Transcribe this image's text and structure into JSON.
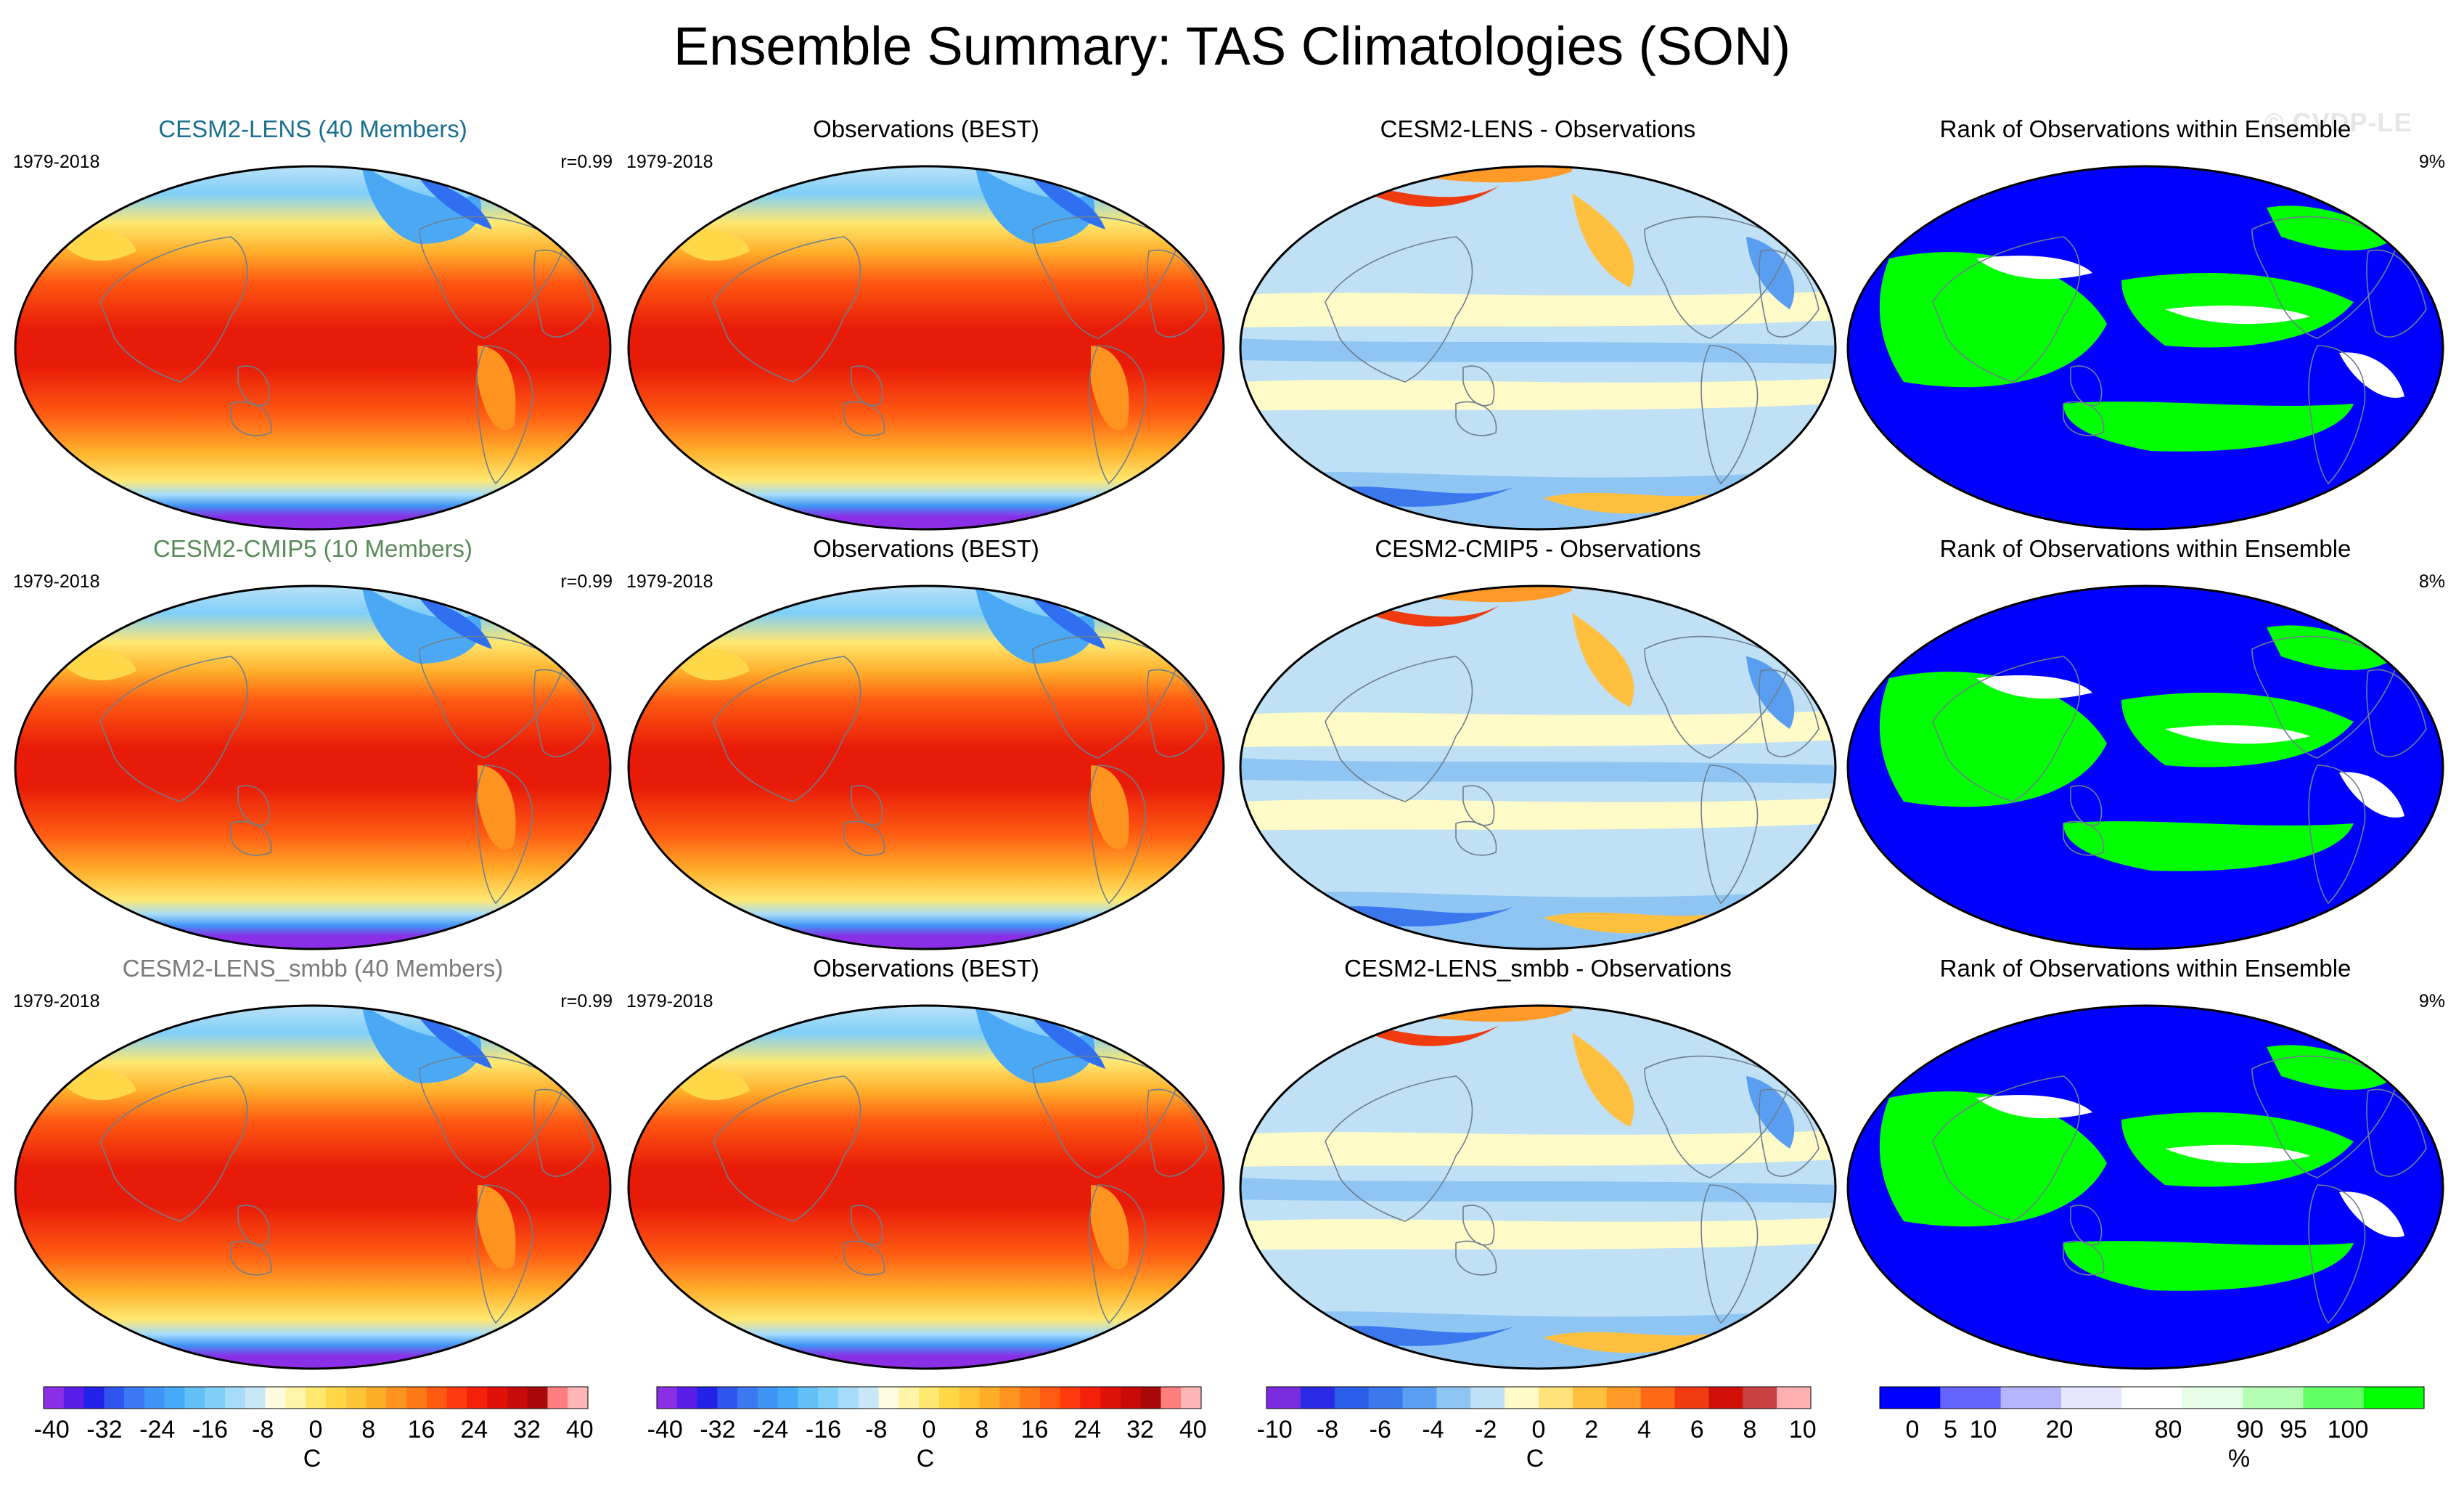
{
  "title": "Ensemble Summary: TAS Climatologies (SON)",
  "watermark": "© CVDP-LE",
  "panels": [
    {
      "col": 0,
      "row": 0,
      "title": "CESM2-LENS (40 Members)",
      "title_color": "#1a6e8e",
      "left": "1979-2018",
      "right": "r=0.99",
      "kind": "clim"
    },
    {
      "col": 1,
      "row": 0,
      "title": "Observations (BEST)",
      "title_color": "#000000",
      "left": "1979-2018",
      "right": "",
      "kind": "clim"
    },
    {
      "col": 2,
      "row": 0,
      "title": "CESM2-LENS - Observations",
      "title_color": "#000000",
      "left": "",
      "right": "",
      "kind": "diff"
    },
    {
      "col": 3,
      "row": 0,
      "title": "Rank of Observations within Ensemble",
      "title_color": "#000000",
      "left": "",
      "right": "9%",
      "kind": "rank"
    },
    {
      "col": 0,
      "row": 1,
      "title": "CESM2-CMIP5 (10 Members)",
      "title_color": "#5a8a5a",
      "left": "1979-2018",
      "right": "r=0.99",
      "kind": "clim"
    },
    {
      "col": 1,
      "row": 1,
      "title": "Observations (BEST)",
      "title_color": "#000000",
      "left": "1979-2018",
      "right": "",
      "kind": "clim"
    },
    {
      "col": 2,
      "row": 1,
      "title": "CESM2-CMIP5 - Observations",
      "title_color": "#000000",
      "left": "",
      "right": "",
      "kind": "diff"
    },
    {
      "col": 3,
      "row": 1,
      "title": "Rank of Observations within Ensemble",
      "title_color": "#000000",
      "left": "",
      "right": "8%",
      "kind": "rank"
    },
    {
      "col": 0,
      "row": 2,
      "title": "CESM2-LENS_smbb (40 Members)",
      "title_color": "#7a7a7a",
      "left": "1979-2018",
      "right": "r=0.99",
      "kind": "clim"
    },
    {
      "col": 1,
      "row": 2,
      "title": "Observations (BEST)",
      "title_color": "#000000",
      "left": "1979-2018",
      "right": "",
      "kind": "clim"
    },
    {
      "col": 2,
      "row": 2,
      "title": "CESM2-LENS_smbb - Observations",
      "title_color": "#000000",
      "left": "",
      "right": "",
      "kind": "diff"
    },
    {
      "col": 3,
      "row": 2,
      "title": "Rank of Observations within Ensemble",
      "title_color": "#000000",
      "left": "",
      "right": "9%",
      "kind": "rank"
    }
  ],
  "colorbars": [
    {
      "unit": "C",
      "ticks": [
        "-40",
        "-32",
        "-24",
        "-16",
        "-8",
        "0",
        "8",
        "16",
        "24",
        "32",
        "40"
      ],
      "colors": [
        "#8b2fe6",
        "#5a1ee8",
        "#2222e8",
        "#2f55ee",
        "#3b78f2",
        "#3f95f5",
        "#47aaf7",
        "#62bff8",
        "#7fcff9",
        "#a6dcf9",
        "#c8e8f7",
        "#fffbe0",
        "#fff4a8",
        "#ffe870",
        "#ffd84a",
        "#ffc438",
        "#ffae2a",
        "#ff9320",
        "#ff7818",
        "#ff5a12",
        "#ff3a0e",
        "#f5200a",
        "#e01208",
        "#c80a08",
        "#a80808",
        "#ff7f7f",
        "#ffb6b6"
      ]
    },
    {
      "unit": "C",
      "ticks": [
        "-40",
        "-32",
        "-24",
        "-16",
        "-8",
        "0",
        "8",
        "16",
        "24",
        "32",
        "40"
      ],
      "colors": [
        "#8b2fe6",
        "#5a1ee8",
        "#2222e8",
        "#2f55ee",
        "#3b78f2",
        "#3f95f5",
        "#47aaf7",
        "#62bff8",
        "#7fcff9",
        "#a6dcf9",
        "#c8e8f7",
        "#fffbe0",
        "#fff4a8",
        "#ffe870",
        "#ffd84a",
        "#ffc438",
        "#ffae2a",
        "#ff9320",
        "#ff7818",
        "#ff5a12",
        "#ff3a0e",
        "#f5200a",
        "#e01208",
        "#c80a08",
        "#a80808",
        "#ff7f7f",
        "#ffb6b6"
      ]
    },
    {
      "unit": "C",
      "ticks": [
        "-10",
        "-8",
        "-6",
        "-4",
        "-2",
        "0",
        "2",
        "4",
        "6",
        "8",
        "10"
      ],
      "colors": [
        "#7a2be0",
        "#2a2ae6",
        "#2a5ee8",
        "#3b78ee",
        "#5a9ef2",
        "#8ec5f3",
        "#bfe0f5",
        "#fffbc8",
        "#ffe27a",
        "#ffc040",
        "#ff9a28",
        "#ff6a18",
        "#f03a10",
        "#d01008",
        "#c84040",
        "#ffb0b0"
      ]
    },
    {
      "unit": "%",
      "ticks": [
        "0",
        "5",
        "10",
        "20",
        "80",
        "90",
        "95",
        "100"
      ],
      "colors": [
        "#0000ff",
        "#6464ff",
        "#b4b4ff",
        "#e6e6ff",
        "#ffffff",
        "#e6ffe6",
        "#b4ffb4",
        "#64ff64",
        "#00ff00"
      ]
    }
  ]
}
